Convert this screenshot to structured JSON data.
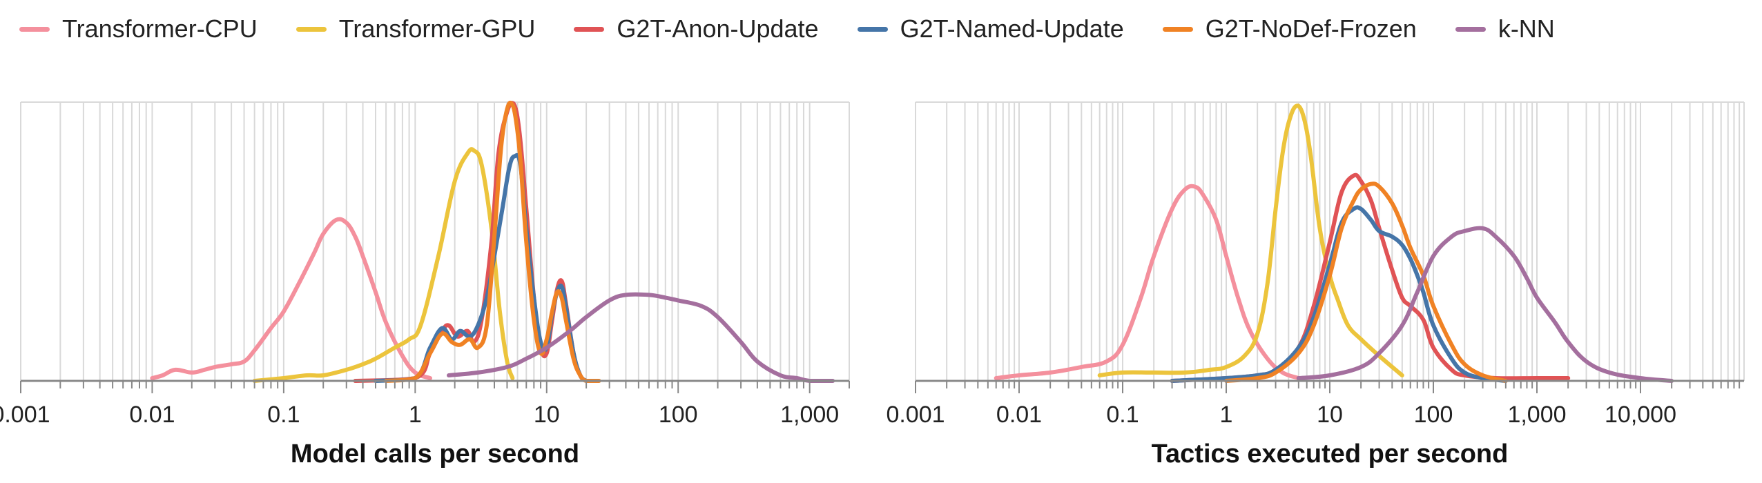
{
  "chart_data": [
    {
      "type": "line",
      "xlabel": "Model calls per second",
      "ylabel": "",
      "xscale": "log",
      "xlim": [
        0.001,
        2000
      ],
      "grid": true,
      "tick_labels": [
        "0.001",
        "0.01",
        "0.1",
        "1",
        "10",
        "100",
        "1,000"
      ],
      "tick_values": [
        0.001,
        0.01,
        0.1,
        1,
        10,
        100,
        1000
      ],
      "series": [
        {
          "name": "Transformer-CPU",
          "x": [
            0.01,
            0.012,
            0.015,
            0.02,
            0.025,
            0.03,
            0.04,
            0.05,
            0.06,
            0.08,
            0.1,
            0.13,
            0.17,
            0.2,
            0.25,
            0.3,
            0.35,
            0.4,
            0.5,
            0.6,
            0.8,
            1.0,
            1.3
          ],
          "y": [
            0.01,
            0.02,
            0.04,
            0.03,
            0.04,
            0.05,
            0.06,
            0.07,
            0.11,
            0.19,
            0.25,
            0.35,
            0.46,
            0.53,
            0.58,
            0.57,
            0.52,
            0.45,
            0.32,
            0.21,
            0.09,
            0.03,
            0.01
          ]
        },
        {
          "name": "Transformer-GPU",
          "x": [
            0.06,
            0.1,
            0.15,
            0.2,
            0.3,
            0.4,
            0.5,
            0.7,
            0.9,
            1.1,
            1.5,
            2.0,
            2.5,
            2.8,
            3.2,
            3.8,
            4.4,
            5.0,
            5.5
          ],
          "y": [
            0.0,
            0.01,
            0.02,
            0.02,
            0.04,
            0.06,
            0.08,
            0.12,
            0.15,
            0.2,
            0.45,
            0.72,
            0.82,
            0.83,
            0.78,
            0.55,
            0.25,
            0.07,
            0.01
          ]
        },
        {
          "name": "G2T-Anon-Update",
          "x": [
            0.35,
            1.0,
            1.3,
            1.6,
            1.8,
            2.1,
            2.5,
            2.8,
            3.2,
            3.8,
            4.3,
            5.0,
            5.6,
            6.2,
            7.0,
            8.0,
            9.0,
            10.0,
            11.0,
            12.0,
            13.0,
            14.0,
            16.0,
            18.0,
            20.0
          ],
          "y": [
            0.0,
            0.01,
            0.1,
            0.18,
            0.2,
            0.16,
            0.18,
            0.14,
            0.22,
            0.5,
            0.82,
            0.97,
            1.0,
            0.9,
            0.62,
            0.3,
            0.12,
            0.1,
            0.22,
            0.33,
            0.36,
            0.28,
            0.1,
            0.02,
            0.0
          ]
        },
        {
          "name": "G2T-Named-Update",
          "x": [
            0.5,
            1.0,
            1.3,
            1.6,
            1.9,
            2.2,
            2.6,
            3.0,
            3.5,
            4.0,
            4.6,
            5.2,
            5.7,
            6.3,
            7.0,
            8.0,
            9.0,
            10.0,
            11.0,
            12.0,
            13.0,
            14.0,
            16.0,
            18.0,
            20.0
          ],
          "y": [
            0.0,
            0.01,
            0.12,
            0.19,
            0.15,
            0.18,
            0.16,
            0.2,
            0.3,
            0.45,
            0.62,
            0.77,
            0.81,
            0.78,
            0.55,
            0.3,
            0.14,
            0.12,
            0.24,
            0.32,
            0.34,
            0.27,
            0.1,
            0.02,
            0.0
          ]
        },
        {
          "name": "G2T-NoDef-Frozen",
          "x": [
            0.6,
            1.0,
            1.3,
            1.6,
            1.9,
            2.2,
            2.6,
            3.0,
            3.5,
            4.0,
            4.5,
            5.0,
            5.4,
            5.8,
            6.3,
            7.0,
            8.0,
            9.0,
            10.0,
            11.0,
            12.0,
            13.0,
            14.0,
            16.0,
            18.0,
            20.0,
            25.0
          ],
          "y": [
            0.0,
            0.01,
            0.1,
            0.17,
            0.14,
            0.13,
            0.15,
            0.12,
            0.2,
            0.52,
            0.84,
            0.98,
            1.0,
            0.95,
            0.8,
            0.5,
            0.22,
            0.1,
            0.15,
            0.25,
            0.32,
            0.3,
            0.22,
            0.08,
            0.02,
            0.0,
            0.0
          ]
        },
        {
          "name": "k-NN",
          "x": [
            1.8,
            3.0,
            5.0,
            7.0,
            10.0,
            15.0,
            20.0,
            30.0,
            40.0,
            60.0,
            80.0,
            100.0,
            150.0,
            200.0,
            300.0,
            400.0,
            600.0,
            800.0,
            1000.0,
            1500.0
          ],
          "y": [
            0.02,
            0.03,
            0.05,
            0.08,
            0.12,
            0.18,
            0.23,
            0.29,
            0.31,
            0.31,
            0.3,
            0.29,
            0.27,
            0.23,
            0.14,
            0.07,
            0.02,
            0.01,
            0.0,
            0.0
          ]
        }
      ]
    },
    {
      "type": "line",
      "xlabel": "Tactics executed per second",
      "ylabel": "",
      "xscale": "log",
      "xlim": [
        0.001,
        100000
      ],
      "grid": true,
      "tick_labels": [
        "0.001",
        "0.01",
        "0.1",
        "1",
        "10",
        "100",
        "1,000",
        "10,000"
      ],
      "tick_values": [
        0.001,
        0.01,
        0.1,
        1,
        10,
        100,
        1000,
        10000
      ],
      "series": [
        {
          "name": "Transformer-CPU",
          "x": [
            0.006,
            0.01,
            0.02,
            0.04,
            0.07,
            0.1,
            0.15,
            0.2,
            0.3,
            0.4,
            0.5,
            0.6,
            0.8,
            1.0,
            1.3,
            1.7,
            2.5,
            3.5,
            5.0
          ],
          "y": [
            0.01,
            0.02,
            0.03,
            0.05,
            0.07,
            0.13,
            0.3,
            0.45,
            0.62,
            0.69,
            0.7,
            0.67,
            0.58,
            0.45,
            0.3,
            0.18,
            0.08,
            0.03,
            0.01
          ]
        },
        {
          "name": "Transformer-GPU",
          "x": [
            0.06,
            0.1,
            0.2,
            0.4,
            0.7,
            1.0,
            1.5,
            2.0,
            2.5,
            3.0,
            3.5,
            4.0,
            4.7,
            5.5,
            6.5,
            8.0,
            10.0,
            12.0,
            15.0,
            20.0,
            30.0,
            50.0
          ],
          "y": [
            0.02,
            0.03,
            0.03,
            0.03,
            0.04,
            0.05,
            0.09,
            0.17,
            0.35,
            0.62,
            0.82,
            0.93,
            0.99,
            0.96,
            0.82,
            0.55,
            0.38,
            0.29,
            0.2,
            0.15,
            0.09,
            0.02
          ]
        },
        {
          "name": "G2T-Anon-Update",
          "x": [
            0.3,
            1.0,
            2.0,
            3.0,
            5.0,
            7.0,
            10.0,
            13.0,
            17.0,
            20.0,
            25.0,
            30.0,
            40.0,
            50.0,
            60.0,
            80.0,
            100.0,
            150.0,
            200.0,
            400.0,
            1000.0,
            2000.0
          ],
          "y": [
            0.0,
            0.01,
            0.02,
            0.04,
            0.12,
            0.27,
            0.5,
            0.68,
            0.74,
            0.72,
            0.65,
            0.55,
            0.4,
            0.3,
            0.27,
            0.22,
            0.12,
            0.04,
            0.02,
            0.01,
            0.01,
            0.01
          ]
        },
        {
          "name": "G2T-Named-Update",
          "x": [
            0.3,
            1.0,
            2.0,
            3.0,
            5.0,
            7.0,
            10.0,
            13.0,
            17.0,
            20.0,
            25.0,
            30.0,
            40.0,
            50.0,
            60.0,
            70.0,
            80.0,
            100.0,
            150.0,
            200.0,
            300.0,
            500.0
          ],
          "y": [
            0.0,
            0.01,
            0.02,
            0.04,
            0.12,
            0.23,
            0.42,
            0.57,
            0.62,
            0.62,
            0.58,
            0.54,
            0.52,
            0.49,
            0.44,
            0.38,
            0.32,
            0.2,
            0.08,
            0.03,
            0.01,
            0.0
          ]
        },
        {
          "name": "G2T-NoDef-Frozen",
          "x": [
            1.0,
            2.0,
            3.0,
            5.0,
            7.0,
            10.0,
            13.0,
            17.0,
            20.0,
            25.0,
            30.0,
            40.0,
            50.0,
            60.0,
            80.0,
            100.0,
            150.0,
            200.0,
            300.0,
            500.0
          ],
          "y": [
            0.0,
            0.01,
            0.03,
            0.1,
            0.2,
            0.38,
            0.55,
            0.65,
            0.69,
            0.71,
            0.7,
            0.64,
            0.56,
            0.48,
            0.38,
            0.27,
            0.13,
            0.06,
            0.02,
            0.0
          ]
        },
        {
          "name": "k-NN",
          "x": [
            5.0,
            10.0,
            20.0,
            30.0,
            50.0,
            70.0,
            100.0,
            150.0,
            200.0,
            300.0,
            400.0,
            600.0,
            800.0,
            1000.0,
            1500.0,
            2000.0,
            3000.0,
            5000.0,
            10000.0,
            20000.0
          ],
          "y": [
            0.01,
            0.02,
            0.05,
            0.1,
            0.2,
            0.32,
            0.45,
            0.52,
            0.54,
            0.55,
            0.52,
            0.45,
            0.37,
            0.3,
            0.21,
            0.14,
            0.07,
            0.03,
            0.01,
            0.0
          ]
        }
      ]
    }
  ],
  "legend": [
    {
      "label": "Transformer-CPU",
      "color": "#f4909d"
    },
    {
      "label": "Transformer-GPU",
      "color": "#ecc43c"
    },
    {
      "label": "G2T-Anon-Update",
      "color": "#e05355"
    },
    {
      "label": "G2T-Named-Update",
      "color": "#4575a8"
    },
    {
      "label": "G2T-NoDef-Frozen",
      "color": "#f08224"
    },
    {
      "label": "k-NN",
      "color": "#a46f9e"
    }
  ]
}
